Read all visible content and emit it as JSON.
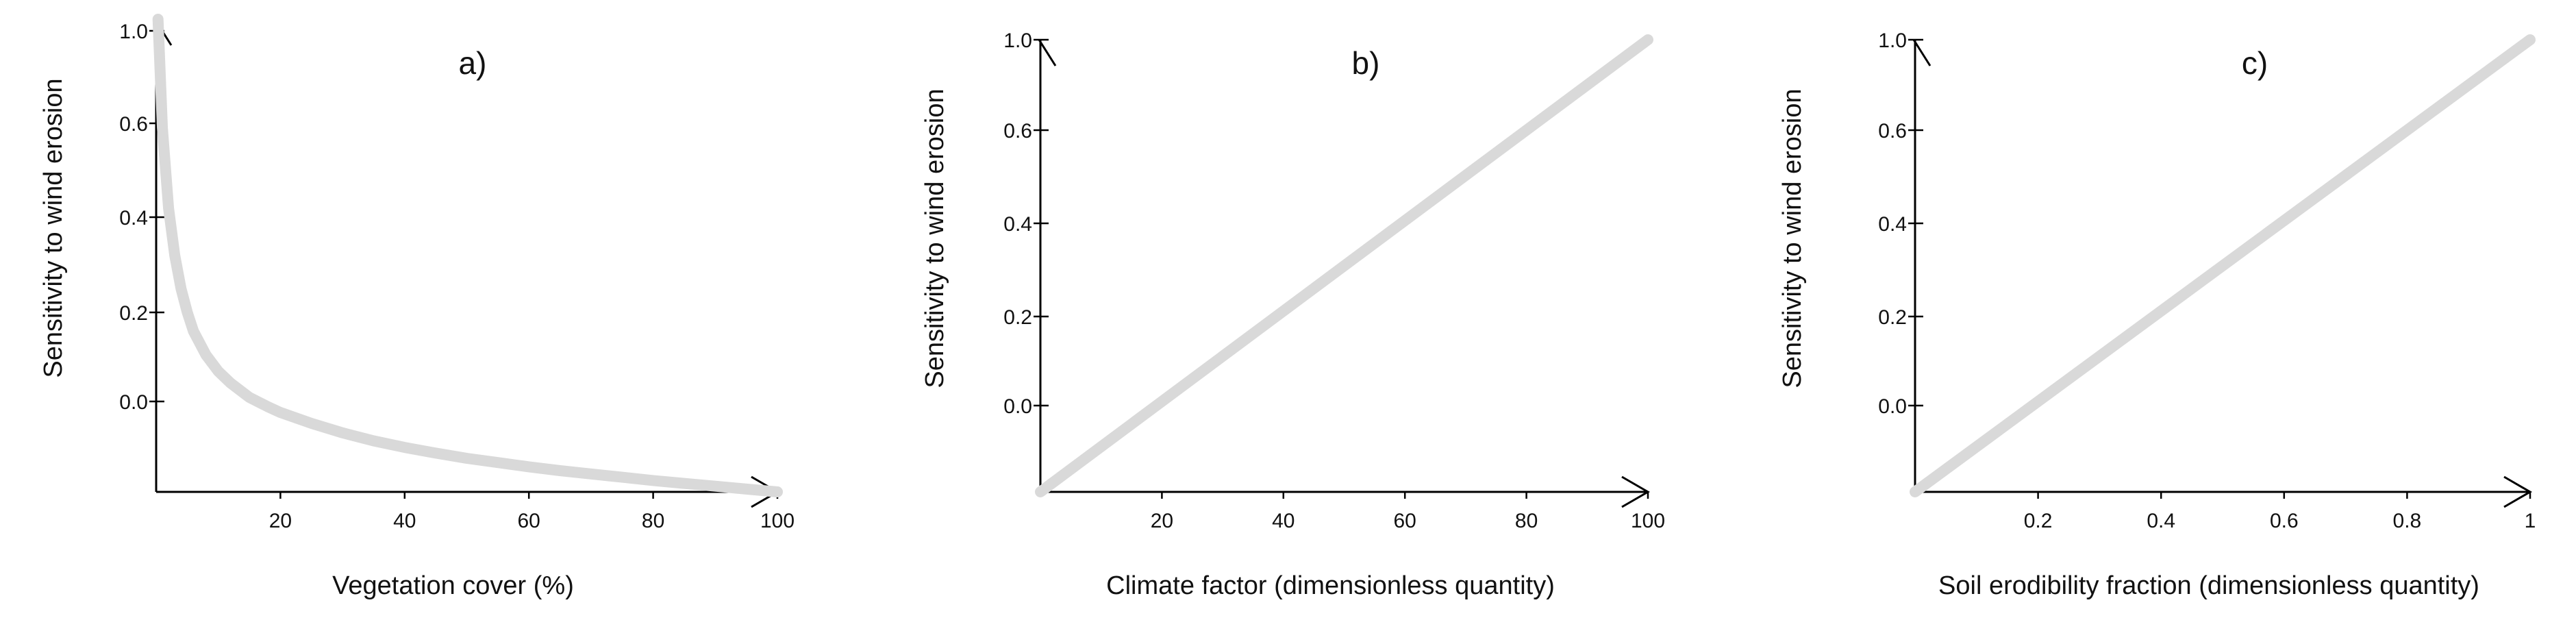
{
  "chart_data": [
    {
      "type": "line",
      "panel_label": "a)",
      "xlabel": "Vegetation cover (%)",
      "ylabel": "Sensitivity to wind erosion",
      "x_ticks": [
        "20",
        "40",
        "60",
        "80",
        "100"
      ],
      "y_ticks": [
        "0.0",
        "0.2",
        "0.4",
        "0.6",
        "1.0"
      ],
      "xlim": [
        0,
        100
      ],
      "ylim": [
        0,
        1
      ],
      "grid": false,
      "series": [
        {
          "color": "#d9d9d9",
          "x": [
            0.3,
            1,
            2,
            3,
            4,
            5,
            6,
            8,
            10,
            12,
            15,
            18,
            20,
            25,
            30,
            35,
            40,
            45,
            50,
            55,
            60,
            65,
            70,
            75,
            80,
            85,
            90,
            95,
            100
          ],
          "y": [
            1.0,
            0.77,
            0.6,
            0.5,
            0.43,
            0.38,
            0.34,
            0.29,
            0.255,
            0.23,
            0.2,
            0.18,
            0.168,
            0.145,
            0.125,
            0.108,
            0.094,
            0.082,
            0.071,
            0.062,
            0.053,
            0.045,
            0.038,
            0.031,
            0.024,
            0.018,
            0.012,
            0.006,
            0.0
          ]
        }
      ]
    },
    {
      "type": "line",
      "panel_label": "b)",
      "xlabel": "Climate factor (dimensionless quantity)",
      "ylabel": "Sensitivity to wind erosion",
      "x_ticks": [
        "20",
        "40",
        "60",
        "80",
        "100"
      ],
      "y_ticks": [
        "0.0",
        "0.2",
        "0.4",
        "0.6",
        "1.0"
      ],
      "xlim": [
        0,
        100
      ],
      "ylim": [
        0,
        1
      ],
      "grid": false,
      "series": [
        {
          "color": "#d9d9d9",
          "x": [
            0,
            100
          ],
          "y": [
            0,
            1
          ]
        }
      ]
    },
    {
      "type": "line",
      "panel_label": "c)",
      "xlabel": "Soil erodibility fraction (dimensionless quantity)",
      "ylabel": "Sensitivity to wind erosion",
      "x_ticks": [
        "0.2",
        "0.4",
        "0.6",
        "0.8",
        "1"
      ],
      "y_ticks": [
        "0.0",
        "0.2",
        "0.4",
        "0.6",
        "1.0"
      ],
      "xlim": [
        0,
        1
      ],
      "ylim": [
        0,
        1
      ],
      "grid": false,
      "series": [
        {
          "color": "#d9d9d9",
          "x": [
            0,
            1
          ],
          "y": [
            0,
            1
          ]
        }
      ]
    }
  ]
}
